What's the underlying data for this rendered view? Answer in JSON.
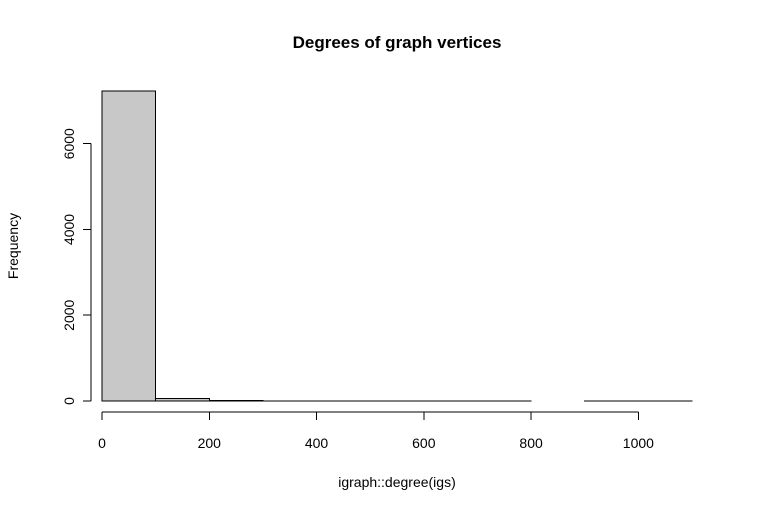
{
  "chart_data": {
    "type": "bar",
    "subtype": "histogram",
    "title": "Degrees of graph vertices",
    "xlabel": "igraph::degree(igs)",
    "ylabel": "Frequency",
    "bins": [
      {
        "from": 0,
        "to": 100,
        "count": 7230
      },
      {
        "from": 100,
        "to": 200,
        "count": 55
      },
      {
        "from": 200,
        "to": 300,
        "count": 10
      },
      {
        "from": 300,
        "to": 400,
        "count": 3
      },
      {
        "from": 400,
        "to": 500,
        "count": 2
      },
      {
        "from": 500,
        "to": 600,
        "count": 1
      },
      {
        "from": 600,
        "to": 700,
        "count": 1
      },
      {
        "from": 700,
        "to": 800,
        "count": 1
      },
      {
        "from": 800,
        "to": 900,
        "count": 0
      },
      {
        "from": 900,
        "to": 1000,
        "count": 1
      },
      {
        "from": 1000,
        "to": 1100,
        "count": 1
      }
    ],
    "xlim": [
      0,
      1100
    ],
    "ylim": [
      0,
      7230
    ],
    "xticks": [
      0,
      200,
      400,
      600,
      800,
      1000
    ],
    "yticks": [
      0,
      2000,
      4000,
      6000
    ],
    "bar_fill": "#c8c8c8",
    "bar_stroke": "#000000",
    "grid": false,
    "legend": "none"
  }
}
